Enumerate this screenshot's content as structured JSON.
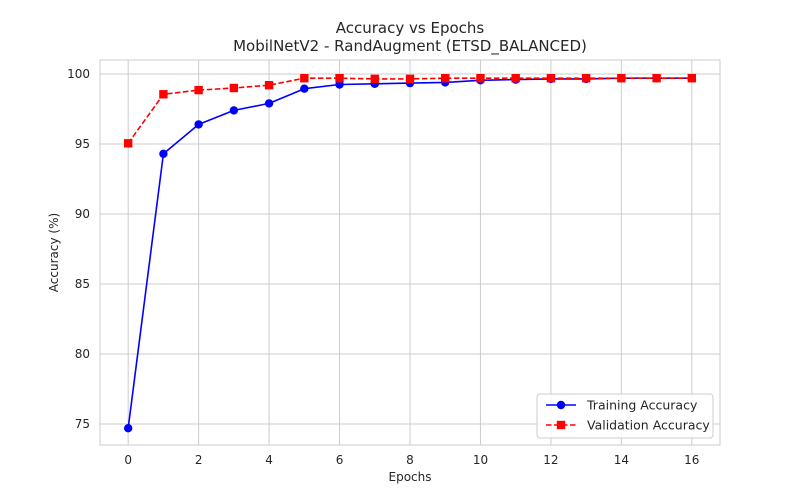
{
  "chart_data": {
    "type": "line",
    "title": "Accuracy vs Epochs",
    "subtitle": "MobilNetV2 - RandAugment (ETSD_BALANCED)",
    "xlabel": "Epochs",
    "ylabel": "Accuracy (%)",
    "xlim": [
      -0.8,
      16.8
    ],
    "ylim": [
      73.5,
      101.0
    ],
    "xticks": [
      0,
      2,
      4,
      6,
      8,
      10,
      12,
      14,
      16
    ],
    "yticks": [
      75,
      80,
      85,
      90,
      95,
      100
    ],
    "grid": true,
    "legend_position": "bottom-right",
    "x": [
      0,
      1,
      2,
      3,
      4,
      5,
      6,
      7,
      8,
      9,
      10,
      11,
      12,
      13,
      14,
      15,
      16
    ],
    "series": [
      {
        "name": "Training Accuracy",
        "color": "#0000ff",
        "line_style": "solid",
        "marker": "circle",
        "values": [
          74.7,
          94.3,
          96.4,
          97.4,
          97.9,
          98.95,
          99.25,
          99.3,
          99.35,
          99.4,
          99.55,
          99.6,
          99.65,
          99.65,
          99.7,
          99.7,
          99.7
        ]
      },
      {
        "name": "Validation Accuracy",
        "color": "#ff0000",
        "line_style": "dashed",
        "marker": "square",
        "values": [
          95.05,
          98.55,
          98.85,
          99.0,
          99.2,
          99.7,
          99.7,
          99.65,
          99.65,
          99.7,
          99.7,
          99.7,
          99.7,
          99.7,
          99.7,
          99.7,
          99.7
        ]
      }
    ]
  }
}
